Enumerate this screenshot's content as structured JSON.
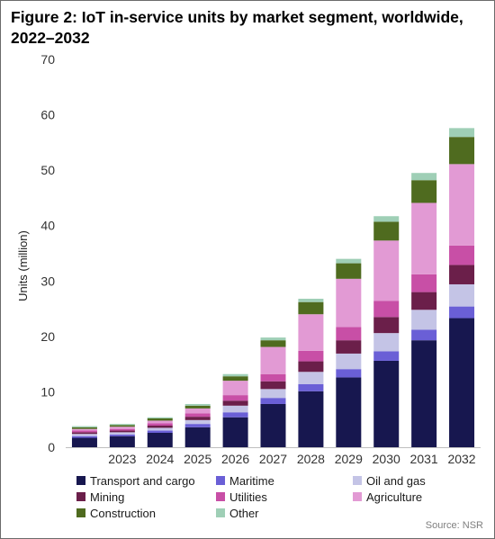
{
  "header": {
    "title_line1": "Figure 2: IoT in-service units by market segment, worldwide,",
    "title_line2": "2022–2032"
  },
  "source": "Source: NSR",
  "chart_data": {
    "type": "bar",
    "stacked": true,
    "title": "Figure 2: IoT in-service units by market segment, worldwide, 2022–2032",
    "xlabel": "",
    "ylabel": "Units (million)",
    "ylim": [
      0,
      70
    ],
    "yticks": [
      0,
      10,
      20,
      30,
      40,
      50,
      60,
      70
    ],
    "grid": false,
    "legend_position": "bottom",
    "categories": [
      "",
      "2023",
      "2024",
      "2025",
      "2026",
      "2027",
      "2028",
      "2029",
      "2030",
      "2031",
      "2032"
    ],
    "series": [
      {
        "name": "Transport and cargo",
        "color": "#17174f",
        "values": [
          1.7,
          2.0,
          2.6,
          3.6,
          5.4,
          7.8,
          10.1,
          12.6,
          15.6,
          19.3,
          23.3
        ]
      },
      {
        "name": "Maritime",
        "color": "#6a5fd6",
        "values": [
          0.3,
          0.3,
          0.4,
          0.6,
          0.9,
          1.1,
          1.3,
          1.5,
          1.7,
          1.9,
          2.1
        ]
      },
      {
        "name": "Oil and gas",
        "color": "#c4c4e6",
        "values": [
          0.4,
          0.4,
          0.5,
          0.7,
          1.2,
          1.6,
          2.2,
          2.8,
          3.3,
          3.6,
          4.0
        ]
      },
      {
        "name": "Mining",
        "color": "#6b1f4a",
        "values": [
          0.3,
          0.3,
          0.4,
          0.6,
          0.9,
          1.4,
          1.9,
          2.4,
          2.9,
          3.2,
          3.5
        ]
      },
      {
        "name": "Utilities",
        "color": "#c84fa6",
        "values": [
          0.3,
          0.3,
          0.4,
          0.6,
          1.0,
          1.3,
          1.9,
          2.4,
          2.9,
          3.2,
          3.5
        ]
      },
      {
        "name": "Agriculture",
        "color": "#e29ad4",
        "values": [
          0.3,
          0.4,
          0.5,
          0.9,
          2.6,
          4.9,
          6.6,
          8.7,
          10.9,
          12.9,
          14.7
        ]
      },
      {
        "name": "Construction",
        "color": "#4f6b1f",
        "values": [
          0.3,
          0.3,
          0.4,
          0.5,
          0.8,
          1.2,
          2.2,
          2.8,
          3.4,
          4.1,
          4.9
        ]
      },
      {
        "name": "Other",
        "color": "#9fcfb6",
        "values": [
          0.2,
          0.2,
          0.2,
          0.3,
          0.4,
          0.5,
          0.6,
          0.8,
          1.0,
          1.3,
          1.6
        ]
      }
    ]
  }
}
